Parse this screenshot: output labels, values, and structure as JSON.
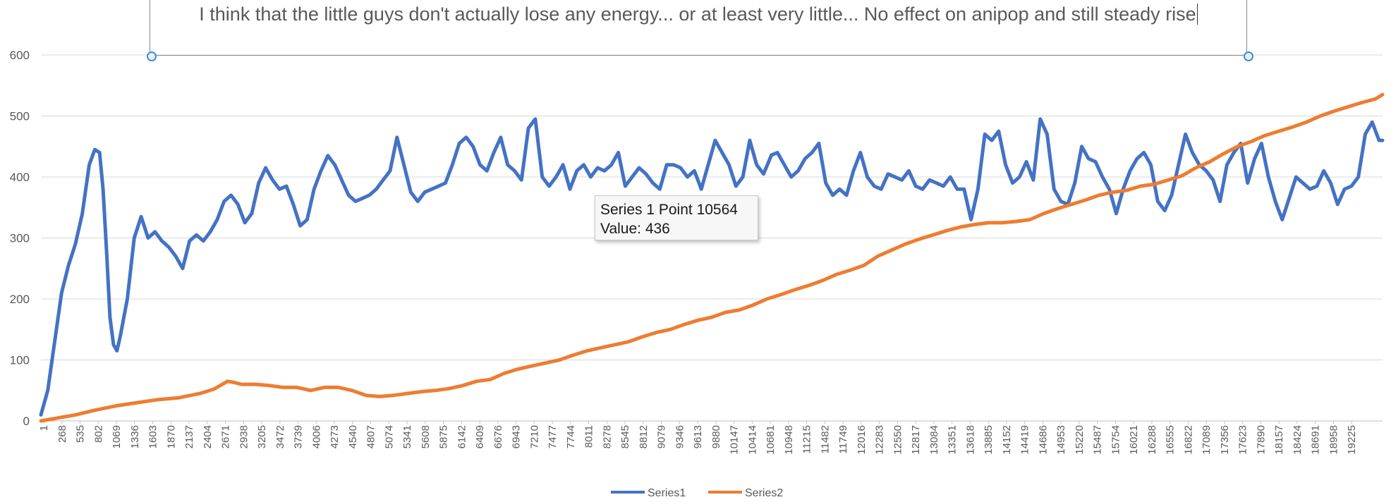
{
  "annotation": {
    "text": "I think that the little guys don't actually lose any energy... or at least very little... No effect on anipop and still steady rise"
  },
  "tooltip": {
    "line1": "Series 1 Point 10564",
    "line2": "Value: 436"
  },
  "colors": {
    "series1": "#4472c4",
    "series2": "#ed7d31",
    "grid": "#d9d9d9",
    "axis_text": "#595959",
    "handle": "#3a8fd6"
  },
  "chart_data": {
    "type": "line",
    "title": "",
    "xlabel": "",
    "ylabel": "",
    "ylim": [
      0,
      600
    ],
    "yticks": [
      0,
      100,
      200,
      300,
      400,
      500,
      600
    ],
    "xlim": [
      1,
      19400
    ],
    "grid": true,
    "legend_position": "bottom",
    "x_tick_labels": [
      "1",
      "268",
      "535",
      "802",
      "1069",
      "1336",
      "1603",
      "1870",
      "2137",
      "2404",
      "2671",
      "2938",
      "3205",
      "3472",
      "3739",
      "4006",
      "4273",
      "4540",
      "4807",
      "5074",
      "5341",
      "5608",
      "5875",
      "6142",
      "6409",
      "6676",
      "6943",
      "7210",
      "7477",
      "7744",
      "8011",
      "8278",
      "8545",
      "8812",
      "9079",
      "9346",
      "9613",
      "9880",
      "10147",
      "10414",
      "10681",
      "10948",
      "11215",
      "11482",
      "11749",
      "12016",
      "12283",
      "12550",
      "12817",
      "13084",
      "13351",
      "13618",
      "13885",
      "14152",
      "14419",
      "14686",
      "14953",
      "15220",
      "15487",
      "15754",
      "16021",
      "16288",
      "16555",
      "16822",
      "17089",
      "17356",
      "17623",
      "17890",
      "18157",
      "18424",
      "18691",
      "18958",
      "19225"
    ],
    "series": [
      {
        "name": "Series1",
        "points": [
          [
            1,
            10
          ],
          [
            100,
            50
          ],
          [
            200,
            130
          ],
          [
            300,
            210
          ],
          [
            400,
            255
          ],
          [
            500,
            290
          ],
          [
            600,
            340
          ],
          [
            700,
            420
          ],
          [
            780,
            445
          ],
          [
            850,
            440
          ],
          [
            900,
            380
          ],
          [
            950,
            280
          ],
          [
            1000,
            170
          ],
          [
            1050,
            125
          ],
          [
            1100,
            115
          ],
          [
            1150,
            140
          ],
          [
            1250,
            200
          ],
          [
            1350,
            300
          ],
          [
            1450,
            335
          ],
          [
            1550,
            300
          ],
          [
            1650,
            310
          ],
          [
            1750,
            295
          ],
          [
            1850,
            285
          ],
          [
            1950,
            270
          ],
          [
            2050,
            250
          ],
          [
            2150,
            295
          ],
          [
            2250,
            305
          ],
          [
            2350,
            295
          ],
          [
            2450,
            310
          ],
          [
            2550,
            330
          ],
          [
            2650,
            360
          ],
          [
            2750,
            370
          ],
          [
            2850,
            355
          ],
          [
            2950,
            325
          ],
          [
            3050,
            340
          ],
          [
            3150,
            390
          ],
          [
            3250,
            415
          ],
          [
            3350,
            395
          ],
          [
            3450,
            380
          ],
          [
            3550,
            385
          ],
          [
            3650,
            355
          ],
          [
            3750,
            320
          ],
          [
            3850,
            330
          ],
          [
            3950,
            380
          ],
          [
            4050,
            410
          ],
          [
            4150,
            435
          ],
          [
            4250,
            420
          ],
          [
            4350,
            395
          ],
          [
            4450,
            370
          ],
          [
            4550,
            360
          ],
          [
            4650,
            365
          ],
          [
            4750,
            370
          ],
          [
            4850,
            380
          ],
          [
            4950,
            395
          ],
          [
            5050,
            410
          ],
          [
            5150,
            465
          ],
          [
            5250,
            420
          ],
          [
            5350,
            375
          ],
          [
            5450,
            360
          ],
          [
            5550,
            375
          ],
          [
            5650,
            380
          ],
          [
            5750,
            385
          ],
          [
            5850,
            390
          ],
          [
            5950,
            420
          ],
          [
            6050,
            455
          ],
          [
            6150,
            465
          ],
          [
            6250,
            450
          ],
          [
            6350,
            420
          ],
          [
            6450,
            410
          ],
          [
            6550,
            440
          ],
          [
            6650,
            465
          ],
          [
            6750,
            420
          ],
          [
            6850,
            410
          ],
          [
            6950,
            395
          ],
          [
            7050,
            480
          ],
          [
            7150,
            495
          ],
          [
            7250,
            400
          ],
          [
            7350,
            385
          ],
          [
            7450,
            400
          ],
          [
            7550,
            420
          ],
          [
            7650,
            380
          ],
          [
            7750,
            410
          ],
          [
            7850,
            420
          ],
          [
            7950,
            400
          ],
          [
            8050,
            415
          ],
          [
            8150,
            410
          ],
          [
            8250,
            420
          ],
          [
            8350,
            440
          ],
          [
            8450,
            385
          ],
          [
            8550,
            400
          ],
          [
            8650,
            415
          ],
          [
            8750,
            405
          ],
          [
            8850,
            390
          ],
          [
            8950,
            380
          ],
          [
            9050,
            420
          ],
          [
            9150,
            420
          ],
          [
            9250,
            415
          ],
          [
            9350,
            400
          ],
          [
            9450,
            410
          ],
          [
            9550,
            380
          ],
          [
            9650,
            420
          ],
          [
            9750,
            460
          ],
          [
            9850,
            440
          ],
          [
            9950,
            420
          ],
          [
            10050,
            385
          ],
          [
            10150,
            400
          ],
          [
            10250,
            460
          ],
          [
            10350,
            420
          ],
          [
            10450,
            405
          ],
          [
            10564,
            436
          ],
          [
            10650,
            440
          ],
          [
            10750,
            420
          ],
          [
            10850,
            400
          ],
          [
            10950,
            410
          ],
          [
            11050,
            430
          ],
          [
            11150,
            440
          ],
          [
            11250,
            455
          ],
          [
            11350,
            390
          ],
          [
            11450,
            370
          ],
          [
            11550,
            380
          ],
          [
            11650,
            370
          ],
          [
            11750,
            410
          ],
          [
            11850,
            440
          ],
          [
            11950,
            400
          ],
          [
            12050,
            385
          ],
          [
            12150,
            380
          ],
          [
            12250,
            405
          ],
          [
            12350,
            400
          ],
          [
            12450,
            395
          ],
          [
            12550,
            410
          ],
          [
            12650,
            385
          ],
          [
            12750,
            380
          ],
          [
            12850,
            395
          ],
          [
            12950,
            390
          ],
          [
            13050,
            385
          ],
          [
            13150,
            400
          ],
          [
            13250,
            380
          ],
          [
            13350,
            380
          ],
          [
            13450,
            330
          ],
          [
            13550,
            380
          ],
          [
            13650,
            470
          ],
          [
            13750,
            460
          ],
          [
            13850,
            475
          ],
          [
            13950,
            420
          ],
          [
            14050,
            390
          ],
          [
            14150,
            400
          ],
          [
            14250,
            425
          ],
          [
            14350,
            395
          ],
          [
            14450,
            495
          ],
          [
            14550,
            470
          ],
          [
            14650,
            380
          ],
          [
            14750,
            360
          ],
          [
            14850,
            355
          ],
          [
            14950,
            390
          ],
          [
            15050,
            450
          ],
          [
            15150,
            430
          ],
          [
            15250,
            425
          ],
          [
            15350,
            400
          ],
          [
            15450,
            380
          ],
          [
            15550,
            340
          ],
          [
            15650,
            380
          ],
          [
            15750,
            410
          ],
          [
            15850,
            430
          ],
          [
            15950,
            440
          ],
          [
            16050,
            420
          ],
          [
            16150,
            360
          ],
          [
            16250,
            345
          ],
          [
            16350,
            370
          ],
          [
            16450,
            420
          ],
          [
            16550,
            470
          ],
          [
            16650,
            440
          ],
          [
            16750,
            420
          ],
          [
            16850,
            410
          ],
          [
            16950,
            395
          ],
          [
            17050,
            360
          ],
          [
            17150,
            420
          ],
          [
            17250,
            440
          ],
          [
            17350,
            455
          ],
          [
            17450,
            390
          ],
          [
            17550,
            430
          ],
          [
            17650,
            455
          ],
          [
            17750,
            400
          ],
          [
            17850,
            360
          ],
          [
            17950,
            330
          ],
          [
            18050,
            365
          ],
          [
            18150,
            400
          ],
          [
            18250,
            390
          ],
          [
            18350,
            380
          ],
          [
            18450,
            385
          ],
          [
            18550,
            410
          ],
          [
            18650,
            390
          ],
          [
            18750,
            355
          ],
          [
            18850,
            380
          ],
          [
            18950,
            385
          ],
          [
            19050,
            400
          ],
          [
            19150,
            470
          ],
          [
            19250,
            490
          ],
          [
            19350,
            460
          ],
          [
            19400,
            460
          ]
        ]
      },
      {
        "name": "Series2",
        "points": [
          [
            1,
            0
          ],
          [
            500,
            10
          ],
          [
            800,
            18
          ],
          [
            1100,
            25
          ],
          [
            1400,
            30
          ],
          [
            1700,
            35
          ],
          [
            2000,
            38
          ],
          [
            2300,
            45
          ],
          [
            2500,
            52
          ],
          [
            2700,
            65
          ],
          [
            2800,
            63
          ],
          [
            2900,
            60
          ],
          [
            3100,
            60
          ],
          [
            3300,
            58
          ],
          [
            3500,
            55
          ],
          [
            3700,
            55
          ],
          [
            3900,
            50
          ],
          [
            4100,
            55
          ],
          [
            4300,
            55
          ],
          [
            4500,
            50
          ],
          [
            4700,
            42
          ],
          [
            4900,
            40
          ],
          [
            5100,
            42
          ],
          [
            5300,
            45
          ],
          [
            5500,
            48
          ],
          [
            5700,
            50
          ],
          [
            5900,
            53
          ],
          [
            6100,
            58
          ],
          [
            6300,
            65
          ],
          [
            6500,
            68
          ],
          [
            6700,
            78
          ],
          [
            6900,
            85
          ],
          [
            7100,
            90
          ],
          [
            7300,
            95
          ],
          [
            7500,
            100
          ],
          [
            7700,
            108
          ],
          [
            7900,
            115
          ],
          [
            8100,
            120
          ],
          [
            8300,
            125
          ],
          [
            8500,
            130
          ],
          [
            8700,
            138
          ],
          [
            8900,
            145
          ],
          [
            9100,
            150
          ],
          [
            9300,
            158
          ],
          [
            9500,
            165
          ],
          [
            9700,
            170
          ],
          [
            9900,
            178
          ],
          [
            10100,
            182
          ],
          [
            10300,
            190
          ],
          [
            10500,
            200
          ],
          [
            10700,
            207
          ],
          [
            10900,
            215
          ],
          [
            11100,
            222
          ],
          [
            11300,
            230
          ],
          [
            11500,
            240
          ],
          [
            11700,
            247
          ],
          [
            11900,
            255
          ],
          [
            12100,
            270
          ],
          [
            12300,
            280
          ],
          [
            12500,
            290
          ],
          [
            12700,
            298
          ],
          [
            12900,
            305
          ],
          [
            13100,
            312
          ],
          [
            13300,
            318
          ],
          [
            13500,
            322
          ],
          [
            13700,
            325
          ],
          [
            13900,
            325
          ],
          [
            14100,
            327
          ],
          [
            14300,
            330
          ],
          [
            14500,
            340
          ],
          [
            14700,
            348
          ],
          [
            14900,
            355
          ],
          [
            15100,
            362
          ],
          [
            15300,
            370
          ],
          [
            15500,
            375
          ],
          [
            15700,
            378
          ],
          [
            15900,
            385
          ],
          [
            16100,
            388
          ],
          [
            16300,
            395
          ],
          [
            16500,
            402
          ],
          [
            16700,
            415
          ],
          [
            16900,
            425
          ],
          [
            17100,
            438
          ],
          [
            17300,
            450
          ],
          [
            17500,
            458
          ],
          [
            17700,
            468
          ],
          [
            17900,
            475
          ],
          [
            18100,
            482
          ],
          [
            18300,
            490
          ],
          [
            18500,
            500
          ],
          [
            18700,
            508
          ],
          [
            18900,
            515
          ],
          [
            19100,
            522
          ],
          [
            19300,
            528
          ],
          [
            19400,
            535
          ]
        ]
      }
    ]
  }
}
